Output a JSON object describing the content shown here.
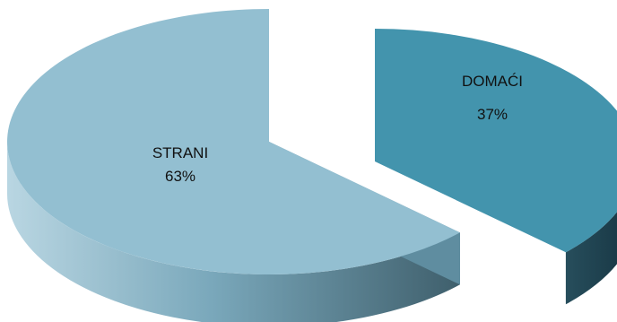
{
  "chart_data": {
    "type": "pie",
    "style": "3d-exploded",
    "title": "",
    "slices": [
      {
        "label": "STRANI",
        "value": 63,
        "value_label": "63%",
        "color": "#93bfd1",
        "shade": "#5f8da0"
      },
      {
        "label": "DOMAĆI",
        "value": 37,
        "value_label": "37%",
        "color": "#4394ad",
        "shade": "#1f4553"
      }
    ],
    "legend": "none"
  }
}
